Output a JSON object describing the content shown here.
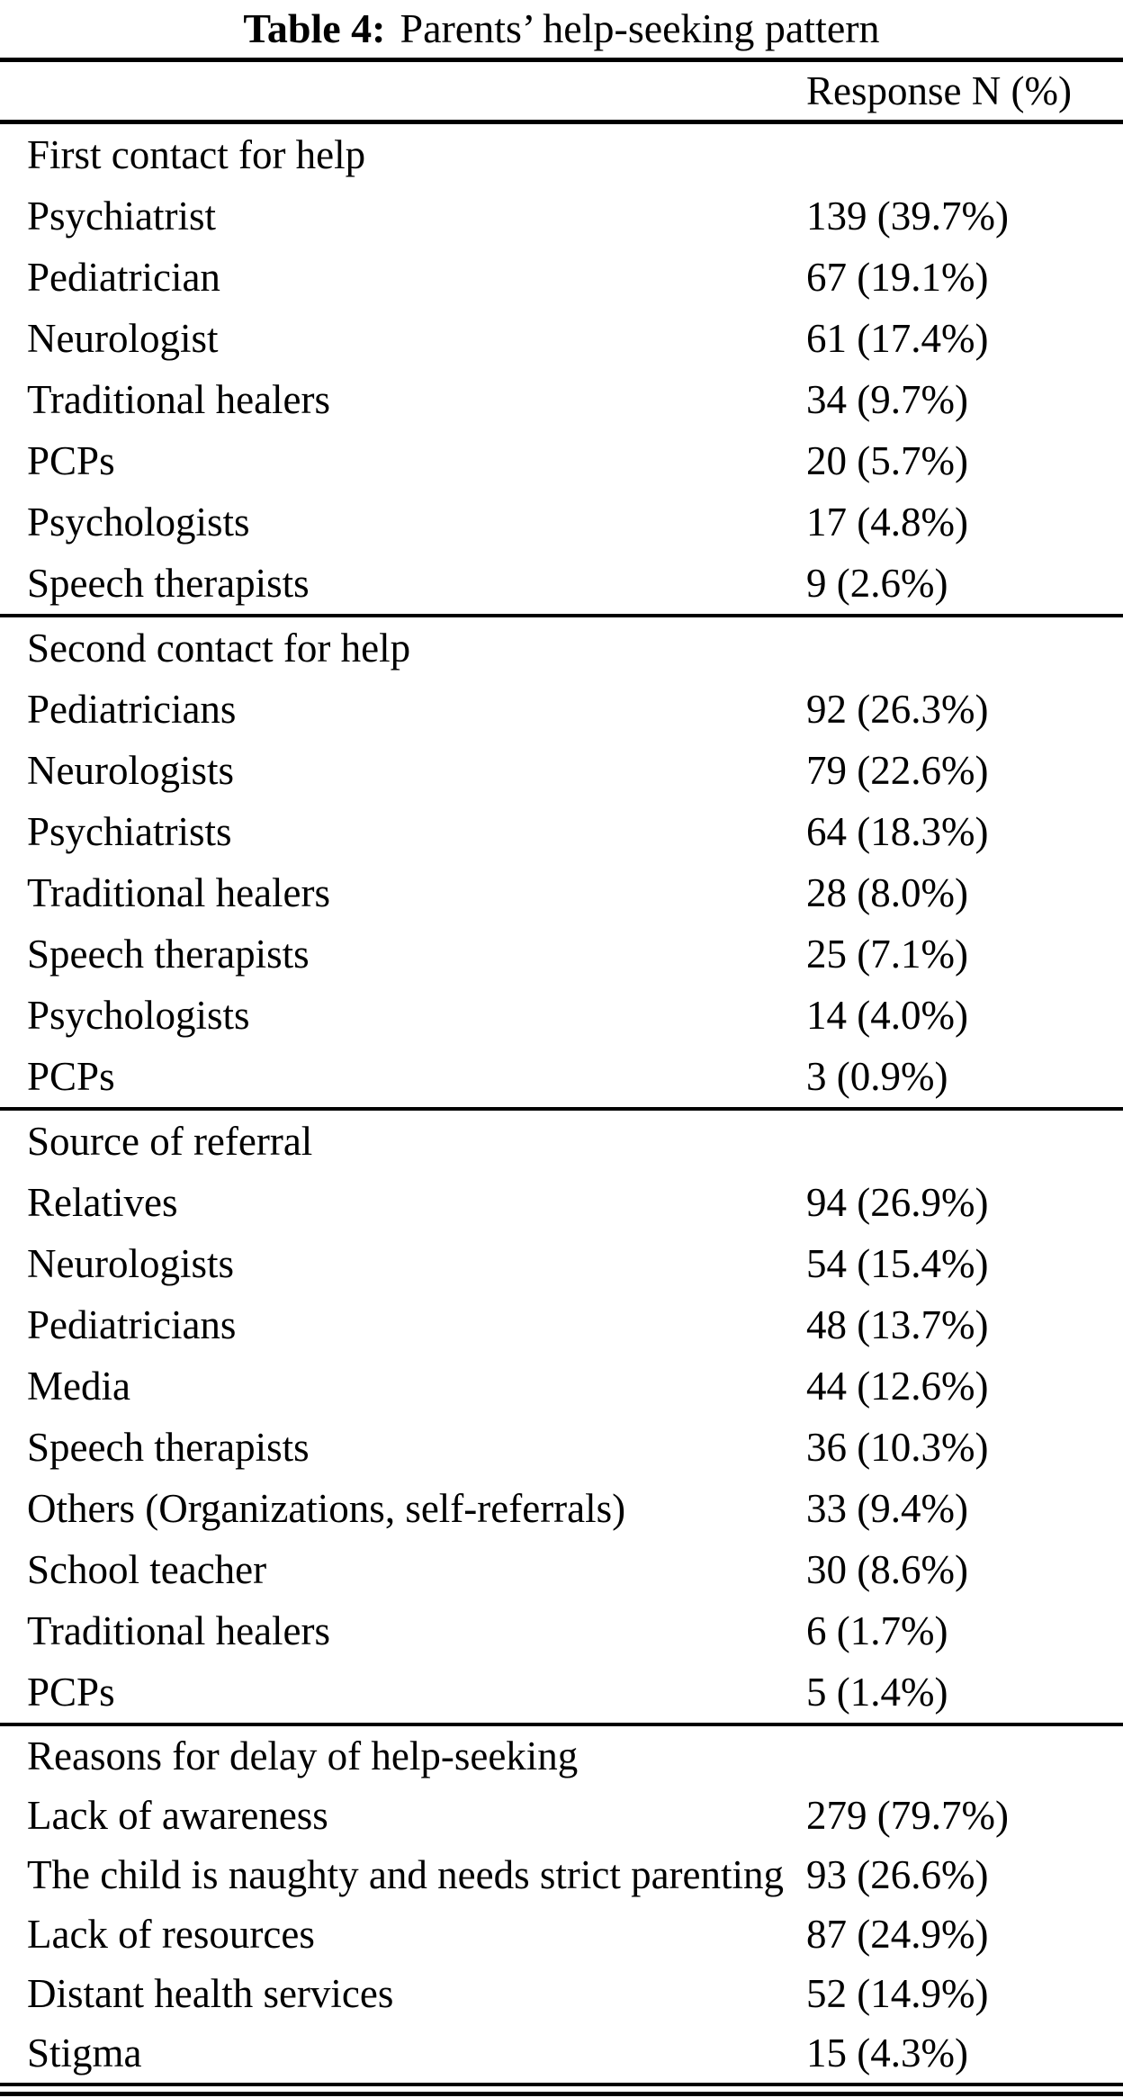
{
  "title": {
    "prefix": "Table 4:",
    "text": "Parents’ help-seeking pattern"
  },
  "columns": {
    "response_header": "Response N (%)"
  },
  "sections": [
    {
      "header": "First contact for help",
      "rows": [
        {
          "label": "Psychiatrist",
          "value": "139 (39.7%)"
        },
        {
          "label": "Pediatrician",
          "value": "67 (19.1%)"
        },
        {
          "label": "Neurologist",
          "value": "61 (17.4%)"
        },
        {
          "label": "Traditional healers",
          "value": "34 (9.7%)"
        },
        {
          "label": "PCPs",
          "value": "20 (5.7%)"
        },
        {
          "label": "Psychologists",
          "value": "17 (4.8%)"
        },
        {
          "label": "Speech therapists",
          "value": "9 (2.6%)"
        }
      ]
    },
    {
      "header": "Second contact for help",
      "rows": [
        {
          "label": "Pediatricians",
          "value": "92 (26.3%)"
        },
        {
          "label": "Neurologists",
          "value": "79 (22.6%)"
        },
        {
          "label": "Psychiatrists",
          "value": "64 (18.3%)"
        },
        {
          "label": "Traditional healers",
          "value": "28 (8.0%)"
        },
        {
          "label": "Speech therapists",
          "value": "25 (7.1%)"
        },
        {
          "label": "Psychologists",
          "value": "14 (4.0%)"
        },
        {
          "label": "PCPs",
          "value": "3 (0.9%)"
        }
      ]
    },
    {
      "header": "Source of referral",
      "rows": [
        {
          "label": "Relatives",
          "value": "94 (26.9%)"
        },
        {
          "label": "Neurologists",
          "value": "54 (15.4%)"
        },
        {
          "label": "Pediatricians",
          "value": "48 (13.7%)"
        },
        {
          "label": "Media",
          "value": "44 (12.6%)"
        },
        {
          "label": "Speech therapists",
          "value": "36 (10.3%)"
        },
        {
          "label": "Others (Organizations, self-referrals)",
          "value": "33 (9.4%)"
        },
        {
          "label": "School teacher",
          "value": "30 (8.6%)"
        },
        {
          "label": "Traditional healers",
          "value": "6 (1.7%)"
        },
        {
          "label": "PCPs",
          "value": "5 (1.4%)"
        }
      ]
    },
    {
      "header": "Reasons for delay of help-seeking",
      "rows": [
        {
          "label": "Lack of awareness",
          "value": "279 (79.7%)"
        },
        {
          "label": "The child is naughty and needs strict parenting",
          "value": "93 (26.6%)"
        },
        {
          "label": "Lack of resources",
          "value": "87 (24.9%)"
        },
        {
          "label": "Distant health services",
          "value": "52 (14.9%)"
        },
        {
          "label": "Stigma",
          "value": "15 (4.3%)"
        }
      ]
    }
  ],
  "colors": {
    "text": "#000000",
    "background": "#ffffff",
    "rule": "#000000"
  }
}
